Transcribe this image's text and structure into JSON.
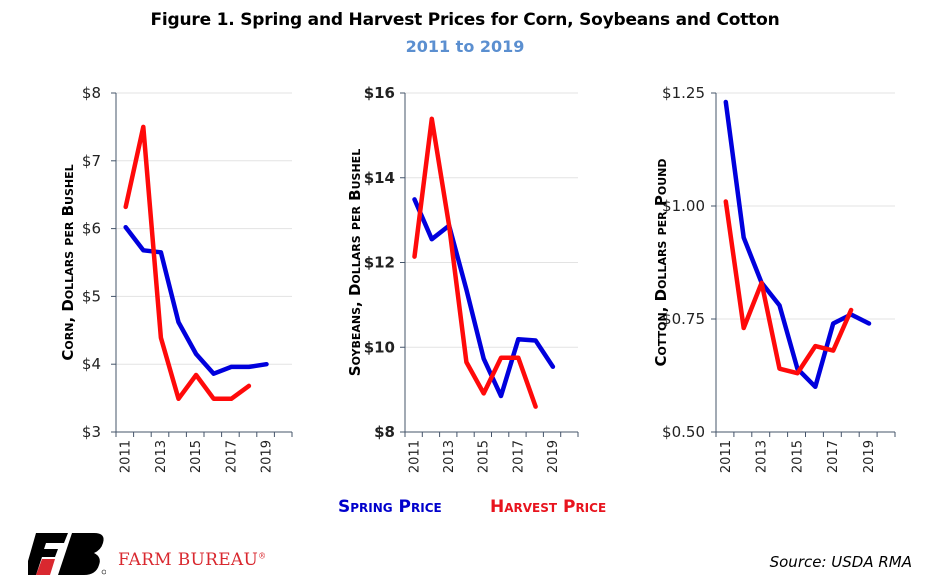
{
  "title": "Figure 1. Spring and Harvest Prices for Corn, Soybeans and Cotton",
  "subtitle": "2011 to 2019",
  "legend": {
    "spring": {
      "label": "Spring Price",
      "color": "#0000dd"
    },
    "harvest": {
      "label": "Harvest Price",
      "color": "#ff0a0a"
    }
  },
  "brand": {
    "name": "FARM BUREAU",
    "mark": "®",
    "logo_icon": "farm-bureau-fb-logo"
  },
  "source": "Source: USDA RMA",
  "chart_data": [
    {
      "type": "line",
      "id": "corn",
      "ylabel": "Corn, Dollars per Bushel",
      "ylim": [
        3,
        8
      ],
      "yticks": [
        3,
        4,
        5,
        6,
        7,
        8
      ],
      "ytick_labels": [
        "$3",
        "$4",
        "$5",
        "$6",
        "$7",
        "$8"
      ],
      "x": [
        2011,
        2012,
        2013,
        2014,
        2015,
        2016,
        2017,
        2018,
        2019
      ],
      "xtick_labels": [
        "2011",
        "2013",
        "2015",
        "2017",
        "2019"
      ],
      "grid": true,
      "series": [
        {
          "name": "Spring Price",
          "values": [
            6.02,
            5.68,
            5.65,
            4.62,
            4.15,
            3.86,
            3.96,
            3.96,
            4.0
          ]
        },
        {
          "name": "Harvest Price",
          "values": [
            6.32,
            7.5,
            4.39,
            3.49,
            3.84,
            3.49,
            3.49,
            3.68,
            null
          ]
        }
      ]
    },
    {
      "type": "line",
      "id": "soybeans",
      "ylabel": "Soybeans, Dollars per Bushel",
      "ylim": [
        8,
        16
      ],
      "yticks": [
        8,
        10,
        12,
        14,
        16
      ],
      "ytick_labels": [
        "$8",
        "$10",
        "$12",
        "$14",
        "$16"
      ],
      "x": [
        2011,
        2012,
        2013,
        2014,
        2015,
        2016,
        2017,
        2018,
        2019
      ],
      "xtick_labels": [
        "2011",
        "2013",
        "2015",
        "2017",
        "2019"
      ],
      "grid": true,
      "series": [
        {
          "name": "Spring Price",
          "values": [
            13.49,
            12.55,
            12.87,
            11.36,
            9.73,
            8.85,
            10.19,
            10.16,
            9.54
          ]
        },
        {
          "name": "Harvest Price",
          "values": [
            12.14,
            15.39,
            12.87,
            9.65,
            8.91,
            9.75,
            9.75,
            8.6,
            null
          ]
        }
      ]
    },
    {
      "type": "line",
      "id": "cotton",
      "ylabel": "Cotton, Dollars per Pound",
      "ylim": [
        0.5,
        1.25
      ],
      "yticks": [
        0.5,
        0.75,
        1.0,
        1.25
      ],
      "ytick_labels": [
        "$0.50",
        "$0.75",
        "$1.00",
        "$1.25"
      ],
      "x": [
        2011,
        2012,
        2013,
        2014,
        2015,
        2016,
        2017,
        2018,
        2019
      ],
      "xtick_labels": [
        "2011",
        "2013",
        "2015",
        "2017",
        "2019"
      ],
      "grid": true,
      "series": [
        {
          "name": "Spring Price",
          "values": [
            1.23,
            0.93,
            0.83,
            0.78,
            0.64,
            0.6,
            0.74,
            0.76,
            0.74
          ]
        },
        {
          "name": "Harvest Price",
          "values": [
            1.01,
            0.73,
            0.83,
            0.64,
            0.63,
            0.69,
            0.68,
            0.77,
            null
          ]
        }
      ]
    }
  ]
}
